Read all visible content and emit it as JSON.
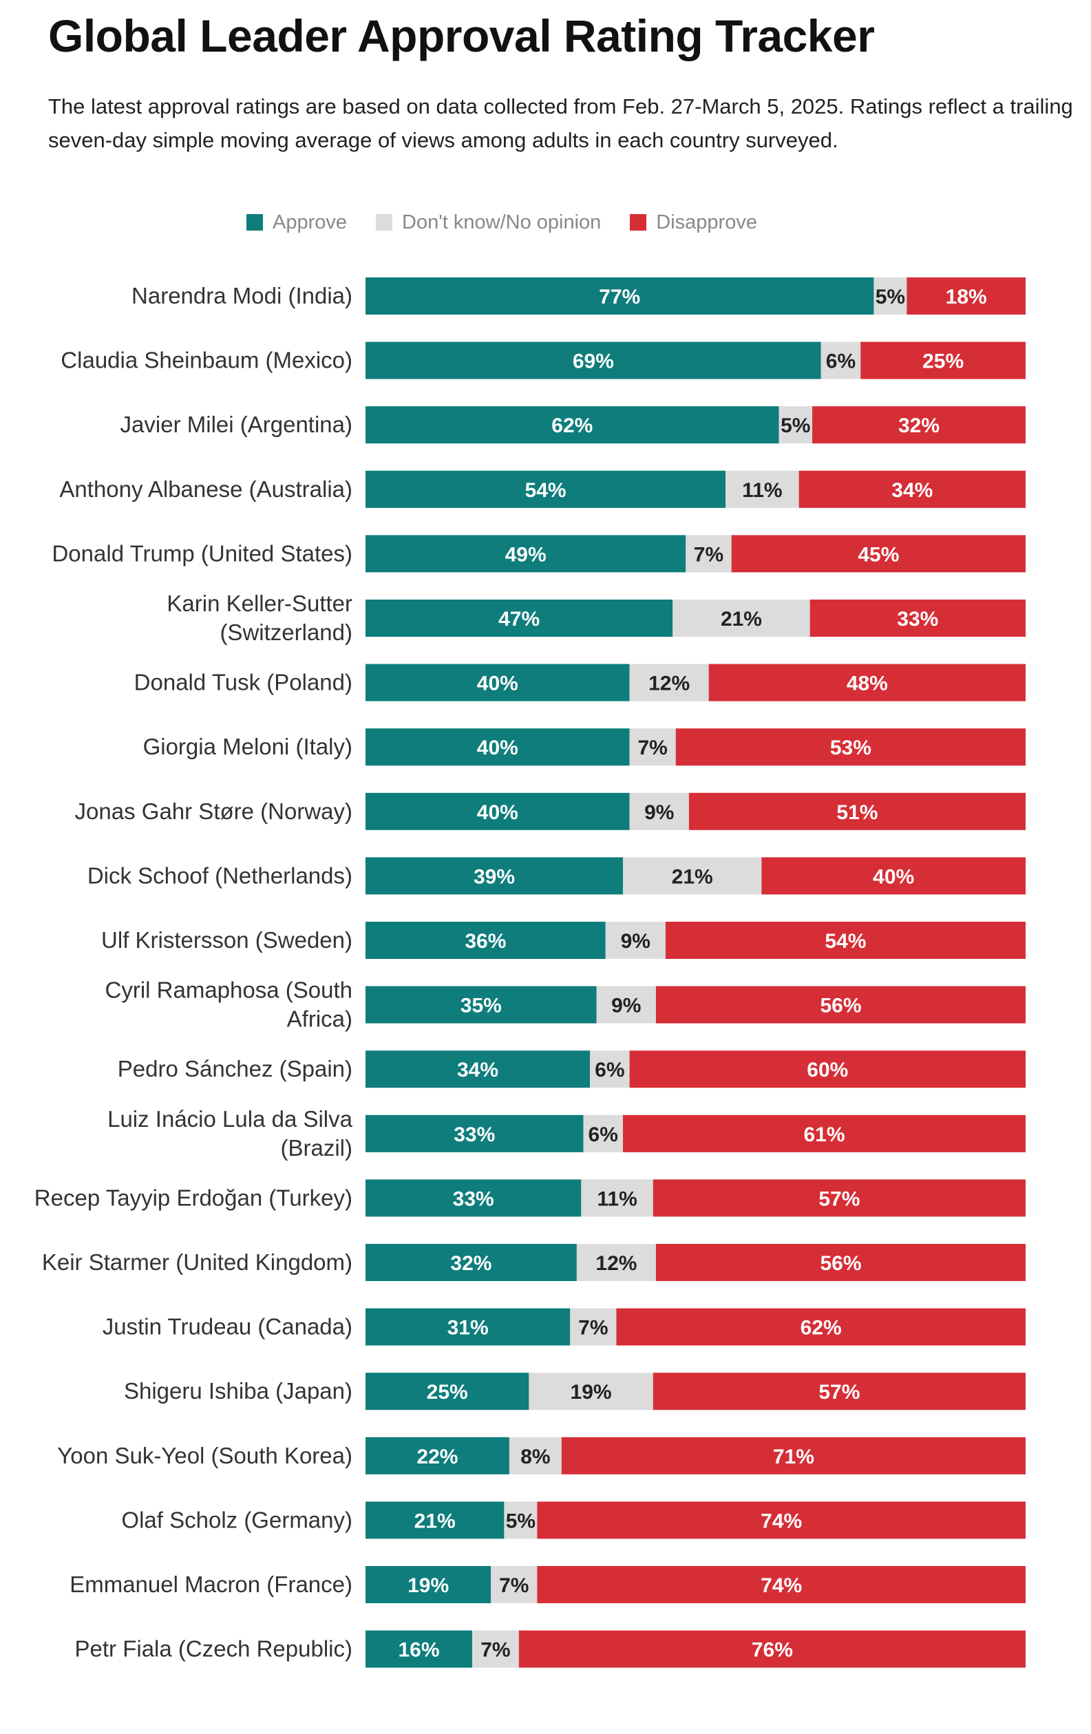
{
  "chart_data": {
    "type": "bar",
    "orientation": "horizontal",
    "stacked": true,
    "title": "Global Leader Approval Rating Tracker",
    "subtitle": "The latest approval ratings are based on data collected from Feb. 27-March 5, 2025. Ratings reflect a trailing seven-day simple moving average of views among adults in each country surveyed.",
    "legend_position": "top",
    "grid": false,
    "value_suffix": "%",
    "series": [
      {
        "name": "Approve",
        "color": "#0e7d7b",
        "label_color": "#ffffff",
        "values": [
          77,
          69,
          62,
          54,
          49,
          47,
          40,
          40,
          40,
          39,
          36,
          35,
          34,
          33,
          33,
          32,
          31,
          25,
          22,
          21,
          19,
          16
        ]
      },
      {
        "name": "Don't know/No opinion",
        "color": "#dcdcdc",
        "label_color": "#222222",
        "values": [
          5,
          6,
          5,
          11,
          7,
          21,
          12,
          7,
          9,
          21,
          9,
          9,
          6,
          6,
          11,
          12,
          7,
          19,
          8,
          5,
          7,
          7
        ]
      },
      {
        "name": "Disapprove",
        "color": "#d62e36",
        "label_color": "#ffffff",
        "values": [
          18,
          25,
          32,
          34,
          45,
          33,
          48,
          53,
          51,
          40,
          54,
          56,
          60,
          61,
          57,
          56,
          62,
          57,
          71,
          74,
          74,
          76
        ]
      }
    ],
    "categories": [
      [
        "Narendra Modi (India)"
      ],
      [
        "Claudia Sheinbaum (Mexico)"
      ],
      [
        "Javier Milei (Argentina)"
      ],
      [
        "Anthony Albanese (Australia)"
      ],
      [
        "Donald Trump (United States)"
      ],
      [
        "Karin Keller-Sutter",
        "(Switzerland)"
      ],
      [
        "Donald Tusk (Poland)"
      ],
      [
        "Giorgia Meloni (Italy)"
      ],
      [
        "Jonas Gahr Støre (Norway)"
      ],
      [
        "Dick Schoof (Netherlands)"
      ],
      [
        "Ulf Kristersson (Sweden)"
      ],
      [
        "Cyril Ramaphosa (South",
        "Africa)"
      ],
      [
        "Pedro Sánchez (Spain)"
      ],
      [
        "Luiz Inácio Lula da Silva",
        "(Brazil)"
      ],
      [
        "Recep Tayyip Erdoğan (Turkey)"
      ],
      [
        "Keir Starmer (United Kingdom)"
      ],
      [
        "Justin Trudeau (Canada)"
      ],
      [
        "Shigeru Ishiba (Japan)"
      ],
      [
        "Yoon Suk-Yeol (South Korea)"
      ],
      [
        "Olaf Scholz (Germany)"
      ],
      [
        "Emmanuel Macron (France)"
      ],
      [
        "Petr Fiala (Czech Republic)"
      ]
    ]
  }
}
